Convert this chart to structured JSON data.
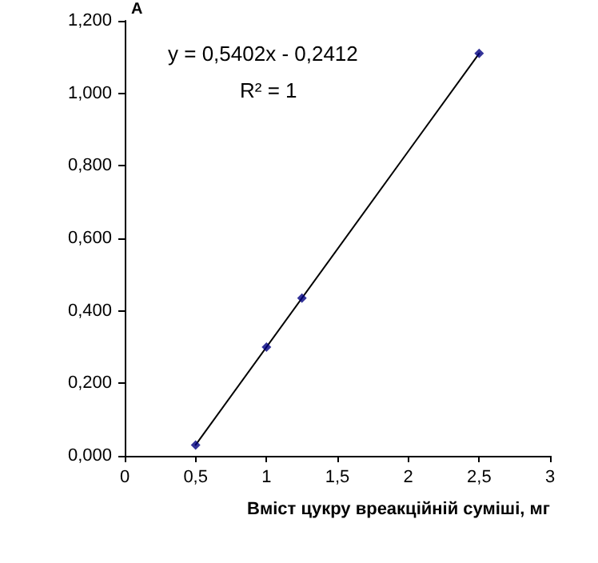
{
  "chart_data": {
    "type": "scatter",
    "xlabel": "Вміст цукру вреакційній суміші, мг",
    "ylabel": "A",
    "annotations": [
      "y = 0,5402x - 0,2412",
      "R² = 1"
    ],
    "series": [
      {
        "color": "#000080",
        "marker": "diamond",
        "x": [
          0.5,
          1,
          1.25,
          2.5
        ],
        "values": [
          0.03,
          0.3,
          0.435,
          1.11
        ]
      },
      {
        "type": "line",
        "color": "#000000",
        "marker": "none",
        "line_style": "solid",
        "x": [
          0.5,
          2.5
        ],
        "values": [
          0.03,
          1.11
        ]
      }
    ],
    "xlim": [
      0,
      3
    ],
    "xticks": [
      0,
      {
        "value": 0.5,
        "label": "0,5"
      },
      1,
      {
        "value": 1.5,
        "label": "1,5"
      },
      2,
      {
        "value": 2.5,
        "label": "2,5"
      },
      3
    ],
    "ylim": [
      0,
      1.2
    ],
    "yticks": [
      {
        "value": 0,
        "label": "0,000"
      },
      {
        "value": 0.2,
        "label": "0,200"
      },
      {
        "value": 0.4,
        "label": "0,400"
      },
      {
        "value": 0.6,
        "label": "0,600"
      },
      {
        "value": 0.8,
        "label": "0,800"
      },
      {
        "value": 1,
        "label": "1,000"
      },
      {
        "value": 1.2,
        "label": "1,200"
      }
    ],
    "grid": false
  }
}
